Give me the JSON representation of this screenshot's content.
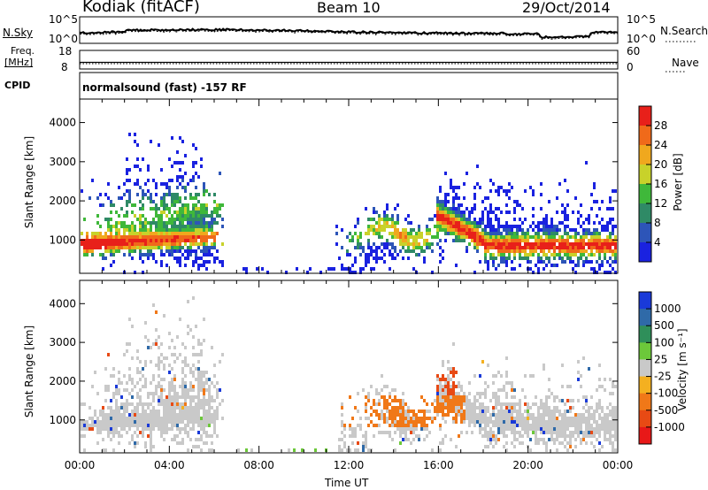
{
  "header": {
    "station": "Kodiak (fitACF)",
    "beam": "Beam 10",
    "date": "29/Oct/2014"
  },
  "sky_panel": {
    "left_label": "N.Sky",
    "right_label": "N.Search",
    "left_ticks": [
      "10^5",
      "10^0"
    ],
    "right_ticks": [
      "10^5",
      "10^0"
    ]
  },
  "freq_panel": {
    "left_label_1": "Freq.",
    "left_label_2": "[MHz]",
    "right_label": "Nave",
    "left_ticks": [
      "18",
      "8"
    ],
    "right_ticks": [
      "60",
      "0"
    ]
  },
  "cpid": {
    "label": "CPID",
    "text": "normalsound (fast) -157 RF"
  },
  "chart_data": [
    {
      "type": "heatmap",
      "quantity": "Power",
      "ylabel": "Slant Range [km]",
      "y_ticks": [
        "1000",
        "2000",
        "3000",
        "4000"
      ],
      "x_ticks": [
        "00:00",
        "04:00",
        "08:00",
        "12:00",
        "16:00",
        "20:00",
        "00:00"
      ],
      "colorbar_label": "Power [dB]",
      "colorbar_ticks": [
        "4",
        "8",
        "12",
        "16",
        "20",
        "24",
        "28"
      ],
      "colors": [
        "#1a22e0",
        "#2d55b8",
        "#2f8a66",
        "#3fb83a",
        "#c8d22a",
        "#f0a81e",
        "#f06a1a",
        "#e8201a"
      ]
    },
    {
      "type": "heatmap",
      "quantity": "Velocity",
      "ylabel": "Slant Range [km]",
      "y_ticks": [
        "1000",
        "2000",
        "3000",
        "4000"
      ],
      "x_ticks": [
        "00:00",
        "04:00",
        "08:00",
        "12:00",
        "16:00",
        "20:00",
        "00:00"
      ],
      "xlabel": "Time UT",
      "colorbar_label": "Velocity [m s⁻¹]",
      "colorbar_ticks": [
        "1000",
        "500",
        "100",
        "25",
        "-25",
        "-100",
        "-500",
        "-1000"
      ],
      "colors": [
        "#1a3ad8",
        "#2f6aa8",
        "#2f8f5a",
        "#6cc83a",
        "#c9c9c9",
        "#f4b020",
        "#f07818",
        "#e84a14",
        "#e81818"
      ]
    }
  ]
}
